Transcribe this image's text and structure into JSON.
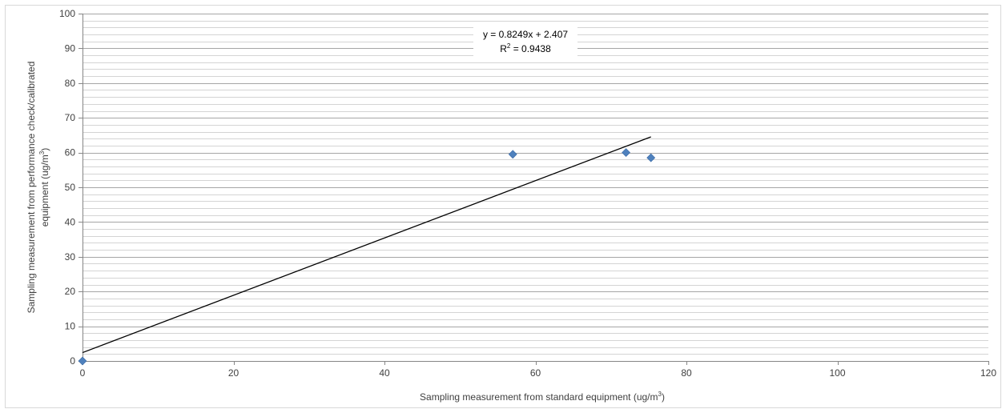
{
  "chart_data": {
    "type": "scatter",
    "title": "",
    "xlabel_main": "Sampling measurement from standard equipment  (ug/m",
    "xlabel_sup": "3",
    "xlabel_end": ")",
    "ylabel_line1_main": "Sampling measurement from performance check/calibrated",
    "ylabel_line2_main": "equipment (ug/m",
    "ylabel_line2_sup": "3",
    "ylabel_line2_end": ")",
    "xlim": [
      0,
      120
    ],
    "ylim": [
      0,
      100
    ],
    "x_ticks": [
      0,
      20,
      40,
      60,
      80,
      100,
      120
    ],
    "y_ticks": [
      0,
      10,
      20,
      30,
      40,
      50,
      60,
      70,
      80,
      90,
      100
    ],
    "grid": "horizontal major and minor",
    "series": [
      {
        "marker": "diamond",
        "color": "#4F81BD",
        "points": [
          {
            "x": 0,
            "y": 0
          },
          {
            "x": 57,
            "y": 59.5
          },
          {
            "x": 72,
            "y": 60
          },
          {
            "x": 75.3,
            "y": 58.5
          }
        ]
      }
    ],
    "trendline": {
      "type": "linear",
      "slope": 0.8249,
      "intercept": 2.407,
      "x_range": [
        0,
        75.3
      ],
      "color": "#000000",
      "equation_label": "y = 0.8249x + 2.407",
      "r2_label_main": "R",
      "r2_label_sup": "2",
      "r2_label_end": " = 0.9438"
    }
  }
}
